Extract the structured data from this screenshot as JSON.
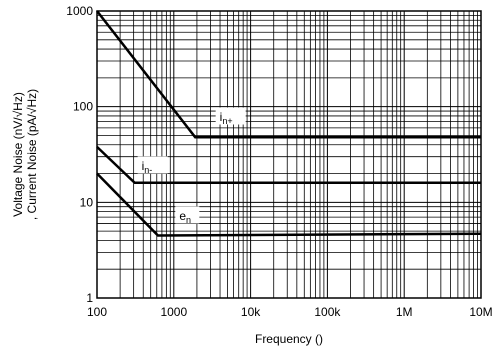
{
  "chart_data": {
    "type": "line",
    "xlabel": "Frequency ()",
    "ylabel_line1": "Voltage Noise (nV/√Hz)",
    "ylabel_line2": ", Current Noise (pA/√Hz)",
    "x_scale": "log",
    "y_scale": "log",
    "xlim": [
      100,
      10000000
    ],
    "ylim": [
      1,
      1000
    ],
    "grid": true,
    "x_ticks": [
      {
        "value": 100,
        "label": "100"
      },
      {
        "value": 1000,
        "label": "1000"
      },
      {
        "value": 10000,
        "label": "10k"
      },
      {
        "value": 100000,
        "label": "100k"
      },
      {
        "value": 1000000,
        "label": "1M"
      },
      {
        "value": 10000000,
        "label": "10M"
      }
    ],
    "y_ticks": [
      {
        "value": 1,
        "label": "1"
      },
      {
        "value": 10,
        "label": "10"
      },
      {
        "value": 100,
        "label": "100"
      },
      {
        "value": 1000,
        "label": "1000"
      }
    ],
    "series": [
      {
        "name": "i",
        "sub": "n+",
        "x": [
          100,
          1900,
          10000000
        ],
        "y": [
          1000,
          48,
          48
        ]
      },
      {
        "name": "i",
        "sub": "n-",
        "x": [
          100,
          310,
          10000000
        ],
        "y": [
          38,
          16,
          16
        ]
      },
      {
        "name": "e",
        "sub": "n",
        "x": [
          100,
          620,
          10000000
        ],
        "y": [
          20,
          4.5,
          4.7
        ]
      }
    ]
  }
}
